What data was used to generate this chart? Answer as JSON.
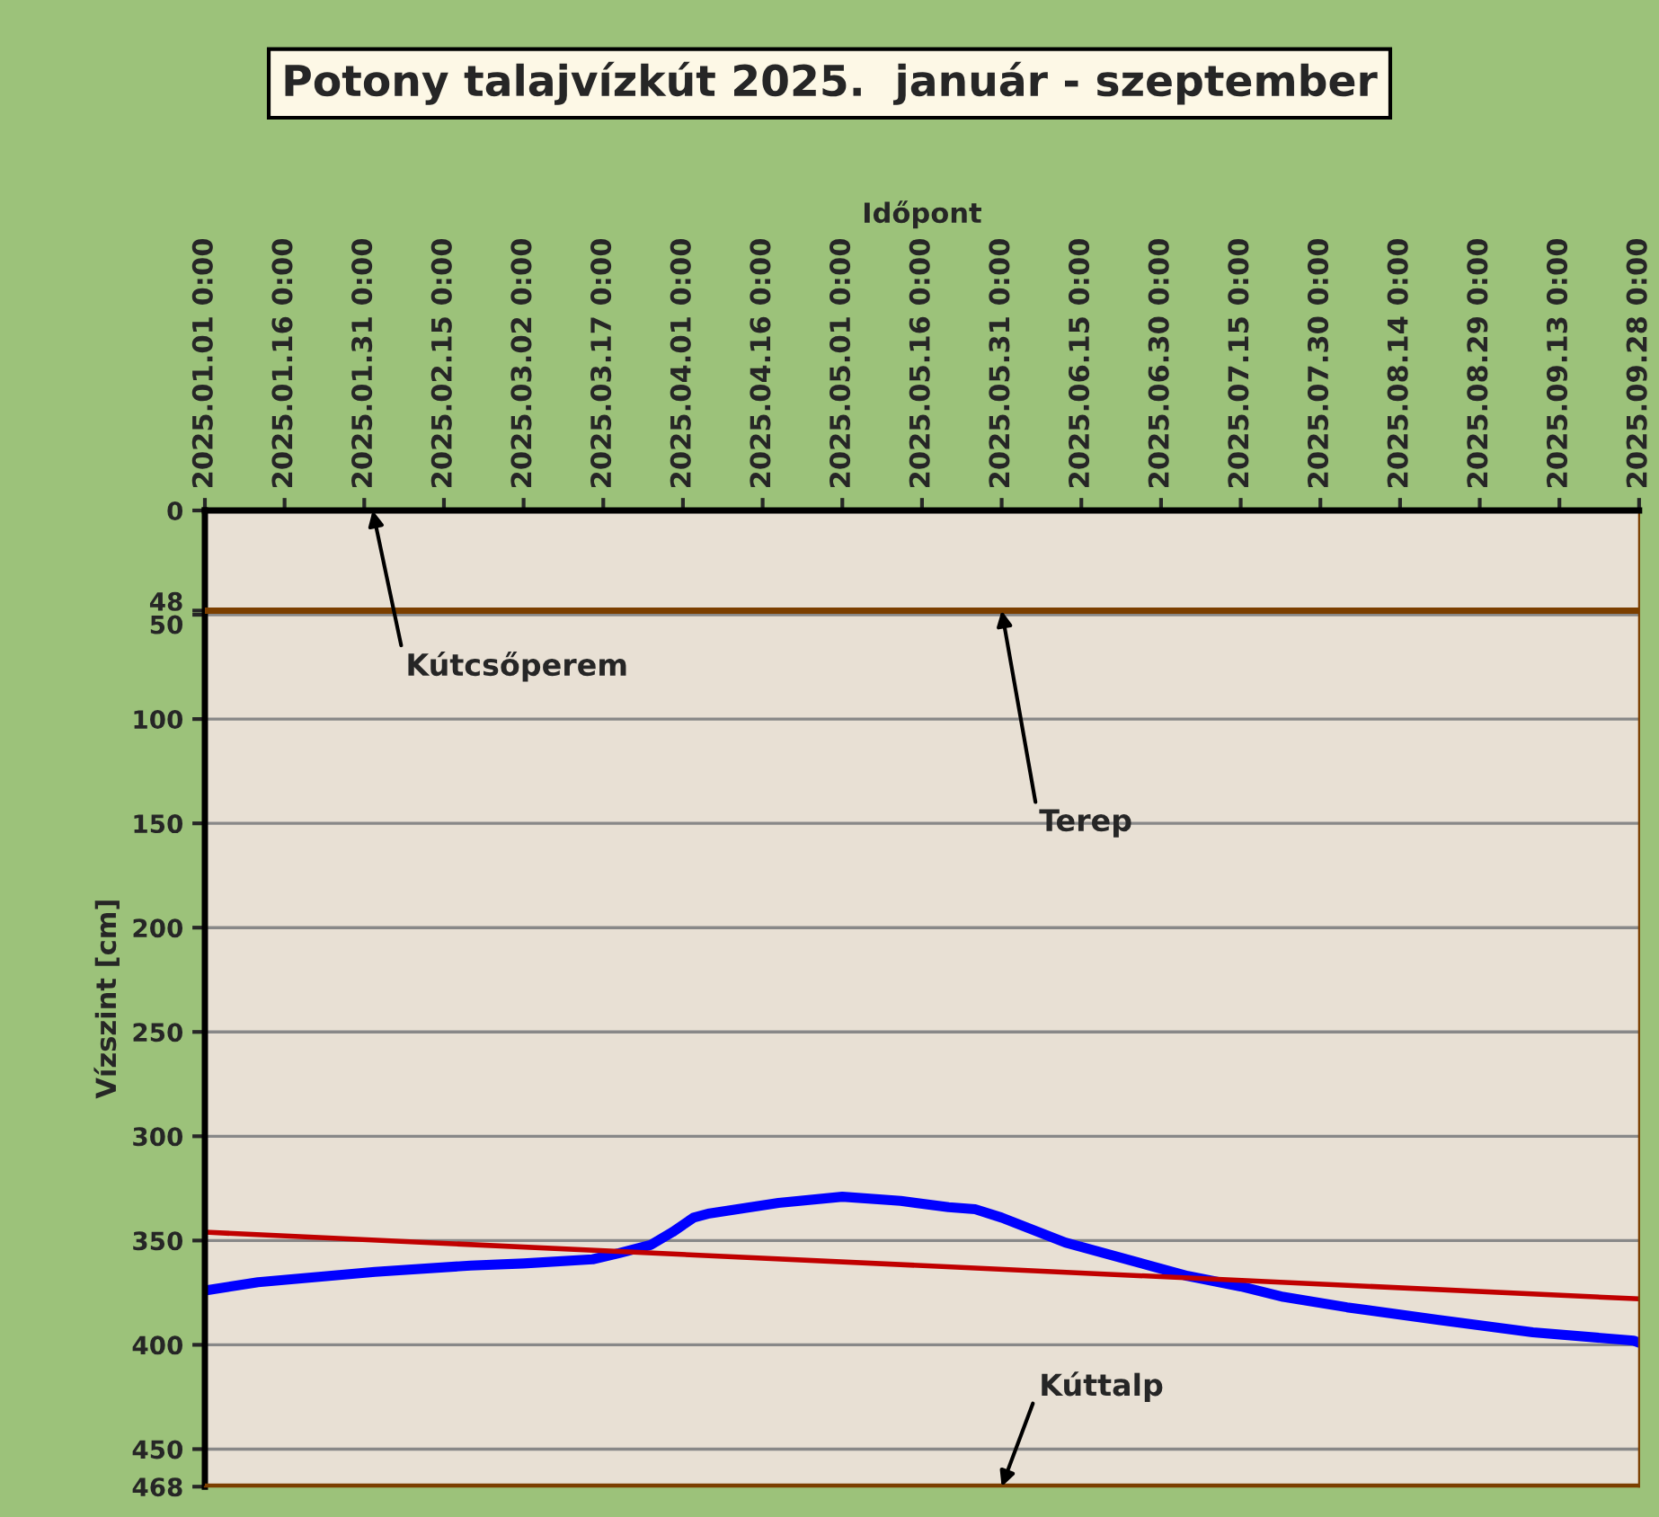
{
  "chart_data": {
    "type": "line",
    "title": "Potony talajvízkút 2025.  január - szeptember",
    "xlabel": "Időpont",
    "ylabel": "Vízszint [cm]",
    "xlim": [
      "2025-01-01",
      "2025-09-28"
    ],
    "xticks": [
      {
        "value": "2025-01-01",
        "label": "2025.01.01 0:00"
      },
      {
        "value": "2025-01-16",
        "label": "2025.01.16 0:00"
      },
      {
        "value": "2025-01-31",
        "label": "2025.01.31 0:00"
      },
      {
        "value": "2025-02-15",
        "label": "2025.02.15 0:00"
      },
      {
        "value": "2025-03-02",
        "label": "2025.03.02 0:00"
      },
      {
        "value": "2025-03-17",
        "label": "2025.03.17 0:00"
      },
      {
        "value": "2025-04-01",
        "label": "2025.04.01 0:00"
      },
      {
        "value": "2025-04-16",
        "label": "2025.04.16 0:00"
      },
      {
        "value": "2025-05-01",
        "label": "2025.05.01 0:00"
      },
      {
        "value": "2025-05-16",
        "label": "2025.05.16 0:00"
      },
      {
        "value": "2025-05-31",
        "label": "2025.05.31 0:00"
      },
      {
        "value": "2025-06-15",
        "label": "2025.06.15 0:00"
      },
      {
        "value": "2025-06-30",
        "label": "2025.06.30 0:00"
      },
      {
        "value": "2025-07-15",
        "label": "2025.07.15 0:00"
      },
      {
        "value": "2025-07-30",
        "label": "2025.07.30 0:00"
      },
      {
        "value": "2025-08-14",
        "label": "2025.08.14 0:00"
      },
      {
        "value": "2025-08-29",
        "label": "2025.08.29 0:00"
      },
      {
        "value": "2025-09-13",
        "label": "2025.09.13 0:00"
      },
      {
        "value": "2025-09-28",
        "label": "2025.09.28 0:00"
      }
    ],
    "ylim": [
      468,
      0
    ],
    "yticks": [
      0,
      48,
      50,
      100,
      150,
      200,
      250,
      300,
      350,
      400,
      450,
      468
    ],
    "grid": "y",
    "legend": false,
    "marker": "none",
    "line_style": "solid",
    "series": [
      {
        "color": "#0000ff",
        "x": [
          "2025-01-01",
          "2025-01-11",
          "2025-02-02",
          "2025-02-20",
          "2025-03-02",
          "2025-03-15",
          "2025-03-20",
          "2025-03-26",
          "2025-03-30",
          "2025-04-03",
          "2025-04-06",
          "2025-04-19",
          "2025-05-01",
          "2025-05-12",
          "2025-05-21",
          "2025-05-26",
          "2025-05-31",
          "2025-06-12",
          "2025-06-25",
          "2025-07-05",
          "2025-07-15",
          "2025-07-23",
          "2025-08-04",
          "2025-08-21",
          "2025-09-08",
          "2025-09-27",
          "2025-09-28"
        ],
        "values": [
          374,
          370,
          365,
          362,
          361,
          359,
          356,
          352,
          346,
          339,
          337,
          332,
          329,
          331,
          334,
          335,
          339,
          351,
          360,
          367,
          372,
          377,
          382,
          388,
          394,
          398,
          399
        ]
      },
      {
        "color": "#c00000",
        "x": [
          "2025-01-01",
          "2025-09-28"
        ],
        "values": [
          346,
          378
        ]
      }
    ],
    "ref_lines": [
      {
        "axis": "y",
        "value": 48,
        "color": "#7b3f00"
      },
      {
        "axis": "y",
        "value": 468,
        "color": "#7b3f00"
      }
    ],
    "annotations": [
      "Kútcsőperem",
      {
        "text": "Terep",
        "x": "2025-05-31",
        "y": 48
      },
      {
        "text": "Kúttalp",
        "x": "2025-05-31",
        "y": 468
      }
    ]
  }
}
